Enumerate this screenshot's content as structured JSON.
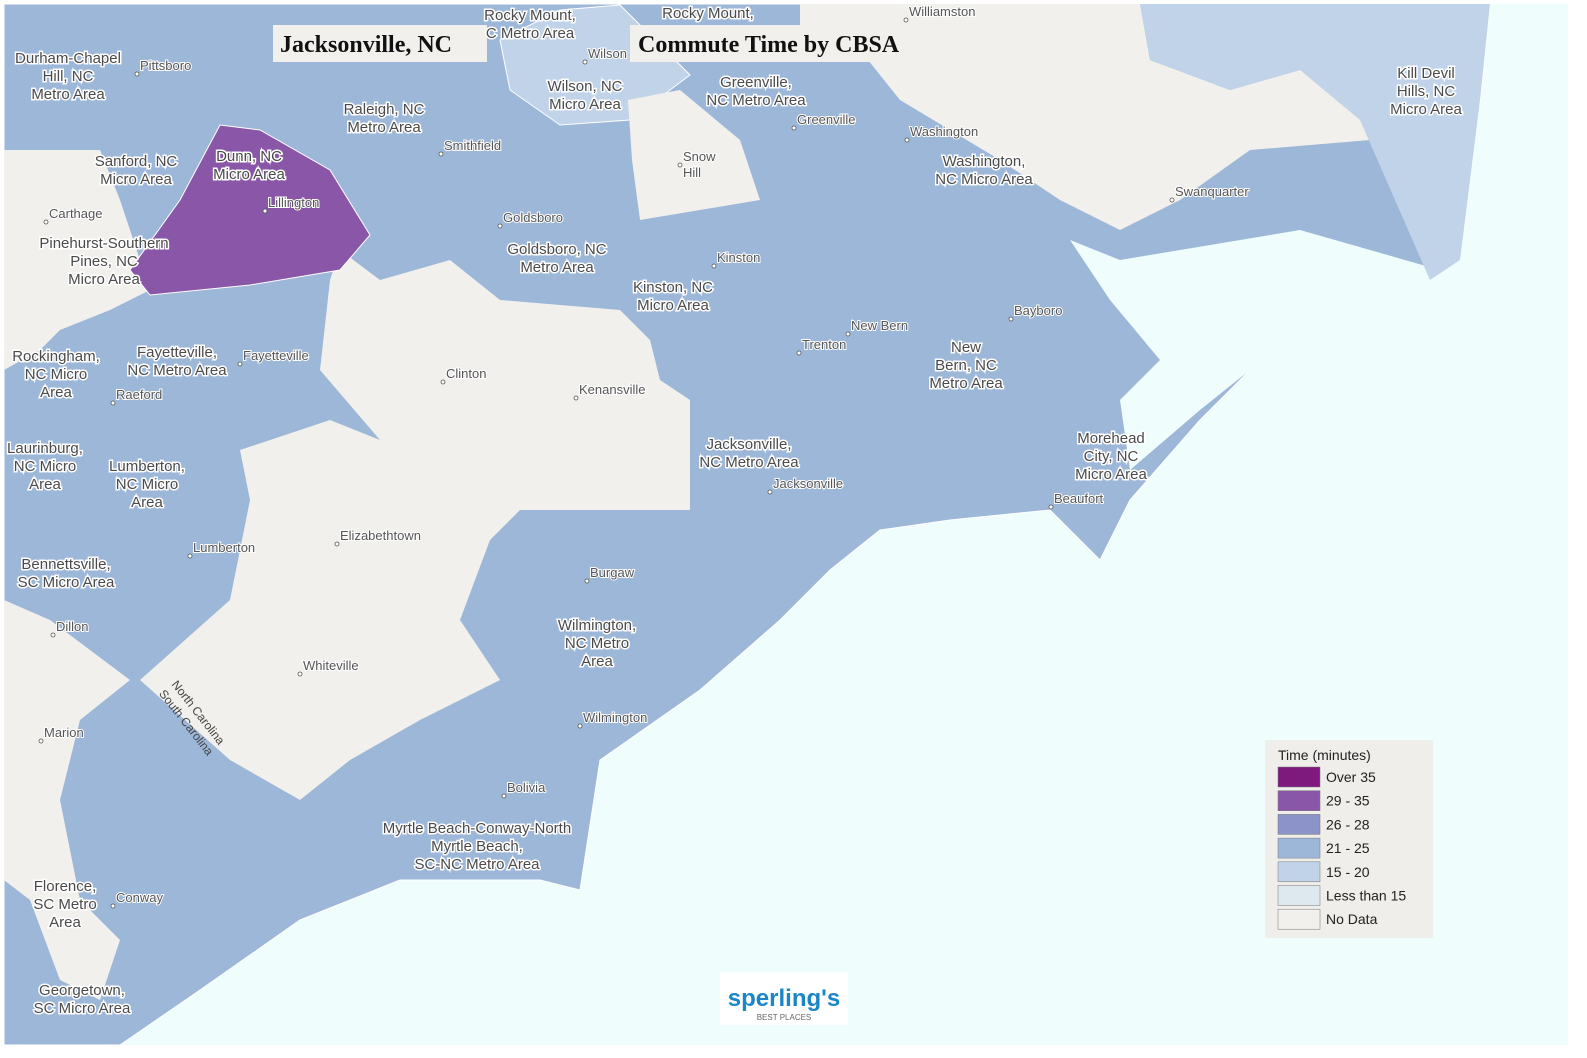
{
  "header": {
    "place": "Jacksonville, NC",
    "title": "Commute Time by CBSA"
  },
  "regions": [
    [
      "Durham-Chapel",
      "Hill, NC",
      "Metro Area"
    ],
    [
      "Rocky Mount,",
      "C Metro Area"
    ],
    [
      "Rocky Mount,"
    ],
    [
      "Wilson, NC",
      "Micro Area"
    ],
    [
      "Greenville,",
      "NC Metro Area"
    ],
    [
      "Kill Devil",
      "Hills, NC",
      "Micro Area"
    ],
    [
      "Raleigh, NC",
      "Metro Area"
    ],
    [
      "Sanford, NC",
      "Micro Area"
    ],
    [
      "Dunn, NC",
      "Micro Area"
    ],
    [
      "Washington,",
      "NC Micro Area"
    ],
    [
      "Pinehurst-Southern",
      "Pines, NC",
      "Micro Area"
    ],
    [
      "Goldsboro, NC",
      "Metro Area"
    ],
    [
      "Kinston, NC",
      "Micro Area"
    ],
    [
      "New",
      "Bern, NC",
      "Metro Area"
    ],
    [
      "Rockingham,",
      "NC Micro",
      "Area"
    ],
    [
      "Fayetteville,",
      "NC Metro Area"
    ],
    [
      "Laurinburg,",
      "NC Micro",
      "Area"
    ],
    [
      "Jacksonville,",
      "NC Metro Area"
    ],
    [
      "Morehead",
      "City, NC",
      "Micro Area"
    ],
    [
      "Lumberton,",
      "NC Micro",
      "Area"
    ],
    [
      "Bennettsville,",
      "SC Micro Area"
    ],
    [
      "Wilmington,",
      "NC Metro",
      "Area"
    ],
    [
      "Myrtle Beach-Conway-North",
      "Myrtle Beach,",
      "SC-NC Metro Area"
    ],
    [
      "Florence,",
      "SC Metro",
      "Area"
    ],
    [
      "Georgetown,",
      "SC Micro Area"
    ]
  ],
  "cities": [
    [
      "Pittsboro"
    ],
    [
      "Wilson"
    ],
    [
      "Williamston"
    ],
    [
      "Smithfield"
    ],
    [
      "Greenville"
    ],
    [
      "Washington"
    ],
    [
      "Snow",
      "Hill"
    ],
    [
      "Carthage"
    ],
    [
      "Goldsboro"
    ],
    [
      "Lillington"
    ],
    [
      "Kinston"
    ],
    [
      "Swanquarter"
    ],
    [
      "Bayboro"
    ],
    [
      "New Bern"
    ],
    [
      "Trenton"
    ],
    [
      "Fayetteville"
    ],
    [
      "Raeford"
    ],
    [
      "Clinton"
    ],
    [
      "Kenansville"
    ],
    [
      "Jacksonville"
    ],
    [
      "Beaufort"
    ],
    [
      "Lumberton"
    ],
    [
      "Elizabethtown"
    ],
    [
      "Burgaw"
    ],
    [
      "Dillon"
    ],
    [
      "Whiteville"
    ],
    [
      "Wilmington"
    ],
    [
      "Marion"
    ],
    [
      "Bolivia"
    ],
    [
      "Conway"
    ]
  ],
  "states": [
    "North Carolina",
    "South Carolina"
  ],
  "legend": {
    "title": "Time (minutes)",
    "items": [
      {
        "label": "Over 35",
        "color": "#7e1a7e"
      },
      {
        "label": "29 - 35",
        "color": "#8a56a8"
      },
      {
        "label": "26 - 28",
        "color": "#8c93c9"
      },
      {
        "label": "21 - 25",
        "color": "#9db7d8"
      },
      {
        "label": "15 - 20",
        "color": "#c0d3e8"
      },
      {
        "label": "Less than 15",
        "color": "#dde8ef"
      },
      {
        "label": "No Data",
        "color": "#f2f0ec"
      }
    ]
  },
  "logo": {
    "name": "sperling's",
    "tagline": "BEST PLACES"
  }
}
